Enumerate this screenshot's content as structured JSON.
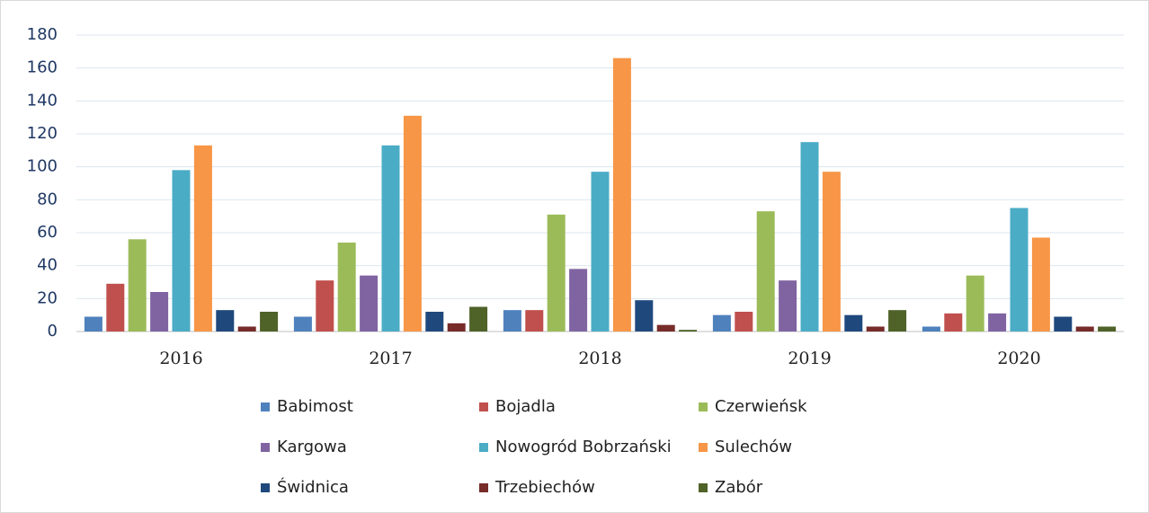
{
  "chart_data": {
    "type": "bar",
    "categories": [
      "2016",
      "2017",
      "2018",
      "2019",
      "2020"
    ],
    "series": [
      {
        "name": "Babimost",
        "color": "#4f81bd",
        "values": [
          9,
          9,
          13,
          10,
          3
        ]
      },
      {
        "name": "Bojadla",
        "color": "#c0504d",
        "values": [
          29,
          31,
          13,
          12,
          11
        ]
      },
      {
        "name": "Czerwieńsk",
        "color": "#9bbb59",
        "values": [
          56,
          54,
          71,
          73,
          34
        ]
      },
      {
        "name": "Kargowa",
        "color": "#8064a2",
        "values": [
          24,
          34,
          38,
          31,
          11
        ]
      },
      {
        "name": "Nowogród Bobrzański",
        "color": "#4bacc6",
        "values": [
          98,
          113,
          97,
          115,
          75
        ]
      },
      {
        "name": "Sulechów",
        "color": "#f79646",
        "values": [
          113,
          131,
          166,
          97,
          57
        ]
      },
      {
        "name": "Świdnica",
        "color": "#1f497d",
        "values": [
          13,
          12,
          19,
          10,
          9
        ]
      },
      {
        "name": "Trzebiechów",
        "color": "#772c2a",
        "values": [
          3,
          5,
          4,
          3,
          3
        ]
      },
      {
        "name": "Zabór",
        "color": "#4f6228",
        "values": [
          12,
          15,
          1,
          13,
          3
        ]
      }
    ],
    "ylim": [
      0,
      180
    ],
    "yticks": [
      0,
      20,
      40,
      60,
      80,
      100,
      120,
      140,
      160,
      180
    ],
    "grid": true
  }
}
